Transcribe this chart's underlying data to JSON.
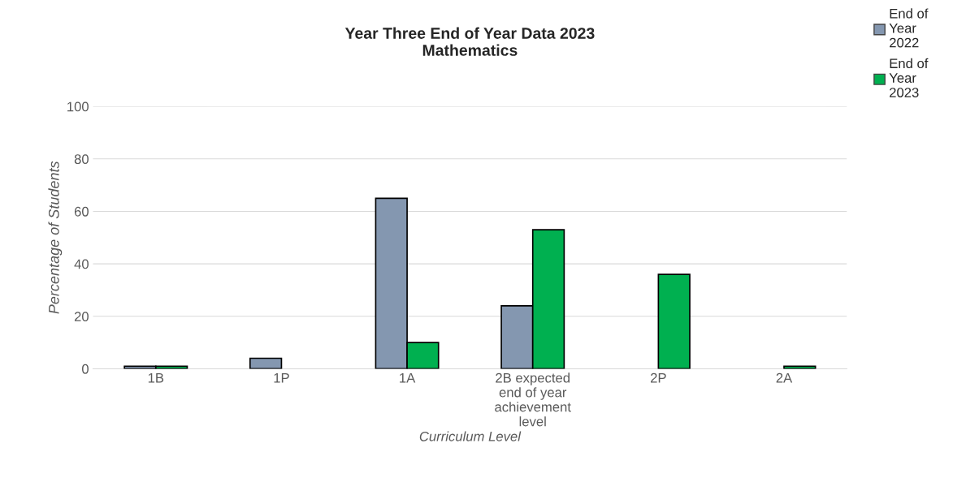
{
  "chart_data": {
    "type": "bar",
    "title": "Year Three End of Year Data 2023\nMathematics",
    "xlabel": "Curriculum Level",
    "ylabel": "Percentage of Students",
    "categories": [
      "1B",
      "1P",
      "1A",
      "2B expected\nend of year\nachievement\nlevel",
      "2P",
      "2A"
    ],
    "series": [
      {
        "name": "End of\nYear\n2022",
        "color": "#8497b0",
        "values": [
          1,
          4,
          65,
          24,
          null,
          null
        ]
      },
      {
        "name": "End of\nYear\n2023",
        "color": "#00b050",
        "values": [
          1,
          null,
          10,
          53,
          36,
          1
        ]
      }
    ],
    "ylim": [
      0,
      100
    ],
    "yticks": [
      0,
      20,
      40,
      60,
      80,
      100
    ],
    "grid": "y",
    "legend": "top right"
  }
}
